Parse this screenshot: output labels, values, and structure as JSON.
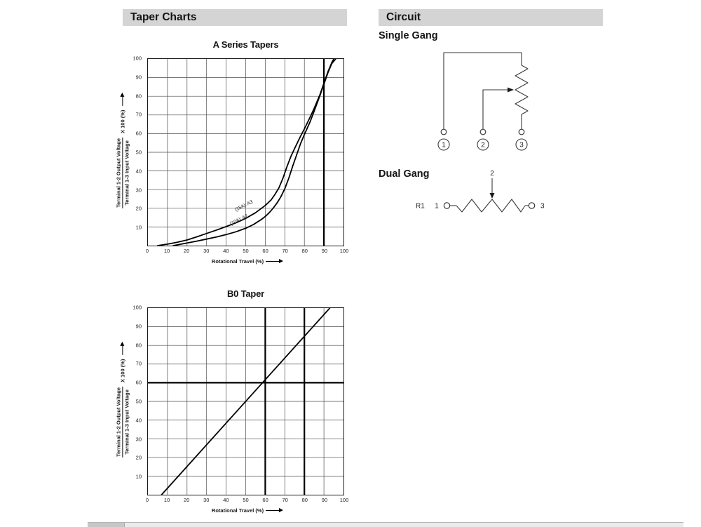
{
  "headers": {
    "taper_charts": "Taper Charts",
    "circuit": "Circuit"
  },
  "circuit": {
    "single_gang": {
      "title": "Single Gang",
      "terminal_1": "1",
      "terminal_2": "2",
      "terminal_3": "3"
    },
    "dual_gang": {
      "title": "Dual Gang",
      "resistor_label": "R1",
      "terminal_left": "1",
      "terminal_wiper": "2",
      "terminal_right": "3"
    }
  },
  "chart_data": [
    {
      "type": "line",
      "title": "A Series Tapers",
      "xlabel": "Rotational Travel (%)",
      "ylabel_numerator": "Terminal 1-2 Output Voltage",
      "ylabel_denominator": "Terminal 1-3 Input Voltage",
      "ylabel_multiplier": "X 100 (%)",
      "xlim": [
        0,
        100
      ],
      "ylim": [
        0,
        100
      ],
      "x_ticks": [
        0,
        10,
        20,
        30,
        40,
        50,
        60,
        70,
        80,
        90,
        100
      ],
      "y_ticks": [
        10,
        20,
        30,
        40,
        50,
        60,
        70,
        80,
        90,
        100
      ],
      "grid": true,
      "grid_interval": 10,
      "legend_position": "on-curve",
      "bold_vlines": [
        90
      ],
      "bold_hlines": [],
      "series": [
        {
          "name": "(15A): A3",
          "label": {
            "text": "(15A): A3",
            "x": 49,
            "y": 19.5,
            "angle": -26
          },
          "points": [
            [
              5,
              0
            ],
            [
              10,
              0.8
            ],
            [
              15,
              1.8
            ],
            [
              20,
              3
            ],
            [
              25,
              4.7
            ],
            [
              30,
              6.5
            ],
            [
              35,
              8.3
            ],
            [
              40,
              10.2
            ],
            [
              45,
              12.2
            ],
            [
              50,
              14.6
            ],
            [
              55,
              17.6
            ],
            [
              60,
              21.5
            ],
            [
              63,
              24.5
            ],
            [
              65,
              27.5
            ],
            [
              67,
              31
            ],
            [
              69,
              36
            ],
            [
              71,
              42
            ],
            [
              73,
              47.5
            ],
            [
              75,
              52
            ],
            [
              78,
              58.5
            ],
            [
              80,
              62.5
            ],
            [
              83,
              69
            ],
            [
              85,
              73.5
            ],
            [
              88,
              81
            ],
            [
              90,
              87
            ],
            [
              92,
              93
            ],
            [
              94,
              98
            ],
            [
              95,
              100
            ]
          ]
        },
        {
          "name": "(10A): A2",
          "label": {
            "text": "(10A): A2",
            "x": 46.5,
            "y": 12,
            "angle": -26
          },
          "points": [
            [
              13,
              0
            ],
            [
              17,
              0.8
            ],
            [
              21,
              1.6
            ],
            [
              25,
              2.4
            ],
            [
              30,
              3.5
            ],
            [
              35,
              4.6
            ],
            [
              40,
              5.9
            ],
            [
              45,
              7.4
            ],
            [
              50,
              9.3
            ],
            [
              54,
              11.3
            ],
            [
              58,
              14
            ],
            [
              60,
              15.6
            ],
            [
              62,
              17.6
            ],
            [
              64,
              20
            ],
            [
              66,
              22.8
            ],
            [
              68,
              26.2
            ],
            [
              70,
              30.5
            ],
            [
              72,
              36
            ],
            [
              74,
              42.5
            ],
            [
              76,
              48.5
            ],
            [
              78,
              54.5
            ],
            [
              80,
              59.5
            ],
            [
              83,
              66.5
            ],
            [
              85,
              72
            ],
            [
              88,
              80.5
            ],
            [
              90,
              86.5
            ],
            [
              92,
              92.5
            ],
            [
              94,
              97.5
            ],
            [
              96,
              100
            ]
          ]
        }
      ]
    },
    {
      "type": "line",
      "title": "B0 Taper",
      "xlabel": "Rotational Travel (%)",
      "ylabel_numerator": "Terminal 1-2 Output Voltage",
      "ylabel_denominator": "Terminal 1-3 Input Voltage",
      "ylabel_multiplier": "X 100 (%)",
      "xlim": [
        0,
        100
      ],
      "ylim": [
        0,
        100
      ],
      "x_ticks": [
        0,
        10,
        20,
        30,
        40,
        50,
        60,
        70,
        80,
        90,
        100
      ],
      "y_ticks": [
        10,
        20,
        30,
        40,
        50,
        60,
        70,
        80,
        90,
        100
      ],
      "grid": true,
      "grid_interval": 10,
      "bold_vlines": [
        60,
        80
      ],
      "bold_hlines": [
        60
      ],
      "series": [
        {
          "name": "B0",
          "points": [
            [
              7,
              0
            ],
            [
              93,
              100
            ]
          ]
        }
      ]
    }
  ],
  "colors": {
    "section_bar_bg": "#d4d4d4",
    "line_color": "#000000",
    "grid_color": "#4c4c4c"
  }
}
